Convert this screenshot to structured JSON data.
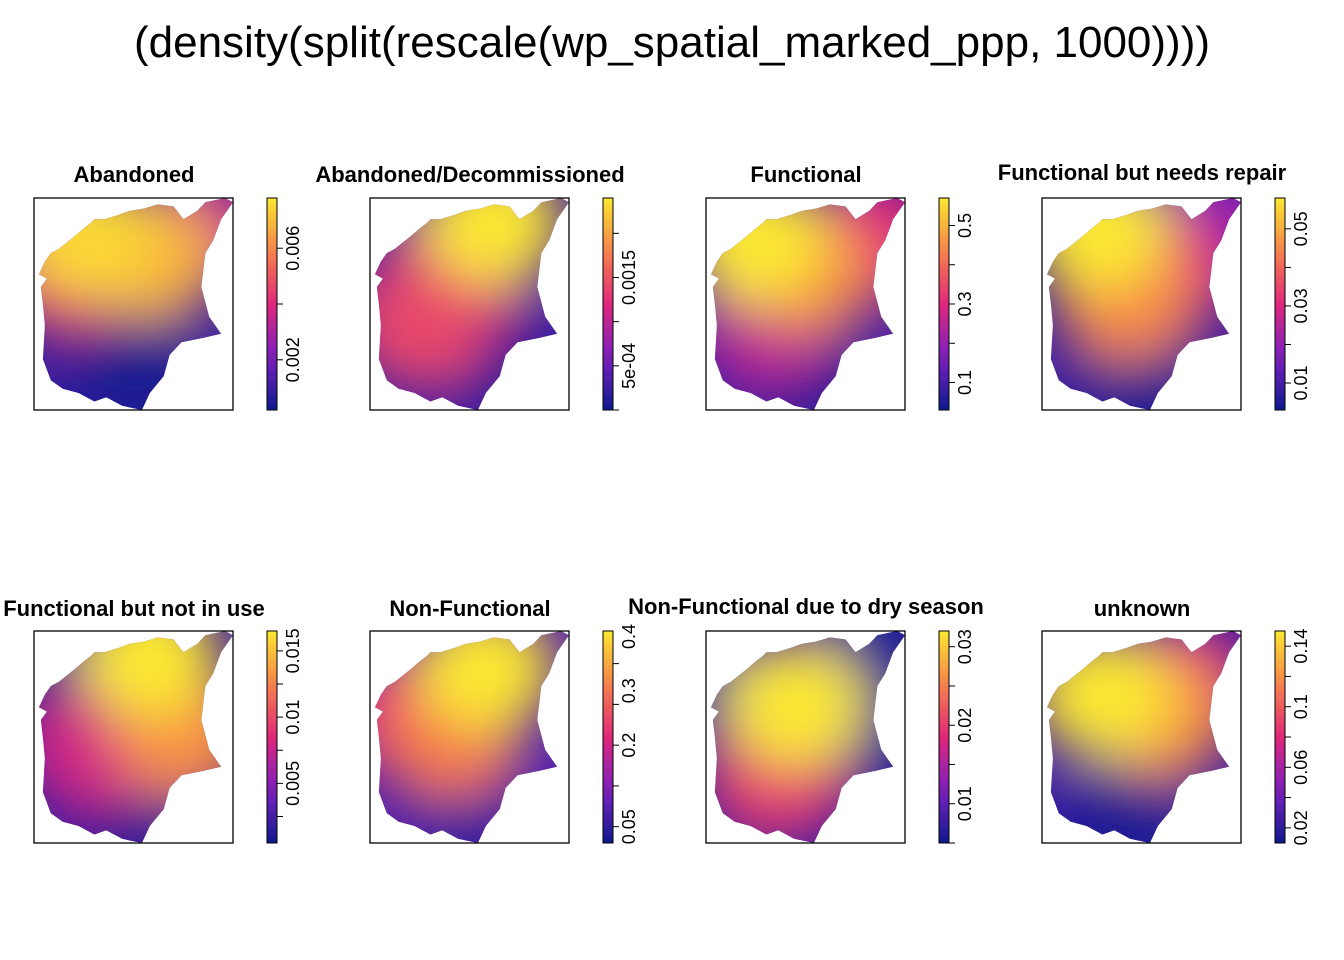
{
  "title": "(density(split(rescale(wp_spatial_marked_ppp, 1000))))",
  "colors": {
    "low": "#0d1a8c",
    "mid1": "#7a1fc0",
    "mid2": "#e0287a",
    "mid3": "#f7814a",
    "high": "#fbe830",
    "frame": "#000000"
  },
  "chart_data": [
    {
      "type": "heatmap",
      "title": "Abandoned",
      "zlim": [
        0.0002,
        0.0078
      ],
      "ticks": [
        0.002,
        0.006
      ],
      "tick_labels": [
        "0.002",
        "0.006"
      ],
      "hotspots": [
        {
          "x": 0.25,
          "y": 0.18,
          "v": 0.0075
        },
        {
          "x": 0.58,
          "y": 0.28,
          "v": 0.0068
        },
        {
          "x": 0.15,
          "y": 0.35,
          "v": 0.0045
        },
        {
          "x": 0.85,
          "y": 0.15,
          "v": 0.0035
        },
        {
          "x": 0.5,
          "y": 0.75,
          "v": 0.0003
        }
      ]
    },
    {
      "type": "heatmap",
      "title": "Abandoned/Decommissioned",
      "zlim": [
        0.0,
        0.0024
      ],
      "ticks": [
        0.0005,
        0.0015
      ],
      "tick_labels": [
        "5e-04",
        "0.0015"
      ],
      "hotspots": [
        {
          "x": 0.62,
          "y": 0.12,
          "v": 0.0024
        },
        {
          "x": 0.25,
          "y": 0.6,
          "v": 0.0014
        },
        {
          "x": 0.45,
          "y": 0.35,
          "v": 0.0012
        },
        {
          "x": 0.1,
          "y": 0.3,
          "v": 0.0001
        },
        {
          "x": 0.6,
          "y": 0.75,
          "v": 0.0001
        }
      ]
    },
    {
      "type": "heatmap",
      "title": "Functional",
      "zlim": [
        0.03,
        0.57
      ],
      "ticks": [
        0.1,
        0.3,
        0.5
      ],
      "tick_labels": [
        "0.1",
        "0.3",
        "0.5"
      ],
      "hotspots": [
        {
          "x": 0.25,
          "y": 0.2,
          "v": 0.57
        },
        {
          "x": 0.5,
          "y": 0.35,
          "v": 0.45
        },
        {
          "x": 0.85,
          "y": 0.2,
          "v": 0.3
        },
        {
          "x": 0.5,
          "y": 0.82,
          "v": 0.05
        },
        {
          "x": 0.3,
          "y": 0.6,
          "v": 0.25
        }
      ]
    },
    {
      "type": "heatmap",
      "title": "Functional but needs repair",
      "zlim": [
        0.003,
        0.058
      ],
      "ticks": [
        0.01,
        0.03,
        0.05
      ],
      "tick_labels": [
        "0.01",
        "0.03",
        "0.05"
      ],
      "hotspots": [
        {
          "x": 0.28,
          "y": 0.15,
          "v": 0.058
        },
        {
          "x": 0.42,
          "y": 0.48,
          "v": 0.045
        },
        {
          "x": 0.6,
          "y": 0.35,
          "v": 0.032
        },
        {
          "x": 0.85,
          "y": 0.15,
          "v": 0.02
        },
        {
          "x": 0.5,
          "y": 0.85,
          "v": 0.004
        }
      ]
    },
    {
      "type": "heatmap",
      "title": "Functional but not in use",
      "zlim": [
        0.0005,
        0.0165
      ],
      "ticks": [
        0.005,
        0.01,
        0.015
      ],
      "tick_labels": [
        "0.005",
        "0.01",
        "0.015"
      ],
      "hotspots": [
        {
          "x": 0.58,
          "y": 0.12,
          "v": 0.0165
        },
        {
          "x": 0.75,
          "y": 0.5,
          "v": 0.013
        },
        {
          "x": 0.3,
          "y": 0.55,
          "v": 0.008
        },
        {
          "x": 0.1,
          "y": 0.3,
          "v": 0.001
        },
        {
          "x": 0.5,
          "y": 0.8,
          "v": 0.001
        }
      ]
    },
    {
      "type": "heatmap",
      "title": "Non-Functional",
      "zlim": [
        0.02,
        0.41
      ],
      "ticks": [
        0.05,
        0.2,
        0.3,
        0.4
      ],
      "tick_labels": [
        "0.05",
        "0.2",
        "0.3",
        "0.4"
      ],
      "hotspots": [
        {
          "x": 0.58,
          "y": 0.18,
          "v": 0.41
        },
        {
          "x": 0.4,
          "y": 0.5,
          "v": 0.3
        },
        {
          "x": 0.2,
          "y": 0.4,
          "v": 0.22
        },
        {
          "x": 0.5,
          "y": 0.85,
          "v": 0.05
        }
      ]
    },
    {
      "type": "heatmap",
      "title": "Non-Functional due to dry season",
      "zlim": [
        0.005,
        0.032
      ],
      "ticks": [
        0.01,
        0.02,
        0.03
      ],
      "tick_labels": [
        "0.01",
        "0.02",
        "0.03"
      ],
      "hotspots": [
        {
          "x": 0.45,
          "y": 0.35,
          "v": 0.032
        },
        {
          "x": 0.35,
          "y": 0.7,
          "v": 0.02
        },
        {
          "x": 0.85,
          "y": 0.05,
          "v": 0.006
        },
        {
          "x": 0.9,
          "y": 0.55,
          "v": 0.006
        },
        {
          "x": 0.08,
          "y": 0.3,
          "v": 0.006
        }
      ]
    },
    {
      "type": "heatmap",
      "title": "unknown",
      "zlim": [
        0.01,
        0.15
      ],
      "ticks": [
        0.02,
        0.06,
        0.1,
        0.14
      ],
      "tick_labels": [
        "0.02",
        "0.06",
        "0.1",
        "0.14"
      ],
      "hotspots": [
        {
          "x": 0.3,
          "y": 0.3,
          "v": 0.15
        },
        {
          "x": 0.6,
          "y": 0.4,
          "v": 0.12
        },
        {
          "x": 0.7,
          "y": 0.25,
          "v": 0.08
        },
        {
          "x": 0.45,
          "y": 0.88,
          "v": 0.015
        }
      ]
    }
  ]
}
